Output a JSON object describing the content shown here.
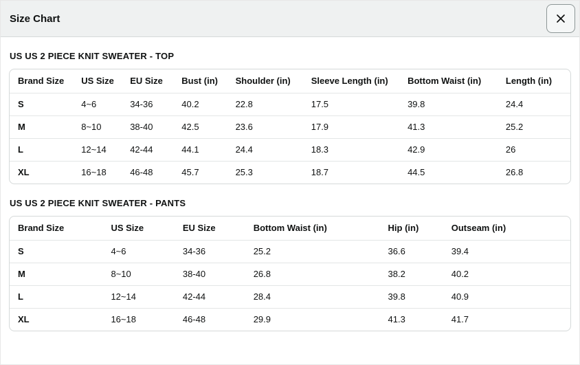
{
  "modal": {
    "title": "Size Chart"
  },
  "colors": {
    "header_background": "#eff1f1",
    "header_border": "#d5d9d9",
    "table_border": "#d5d9d9",
    "row_divider": "#e3e6e6",
    "text": "#0f1111",
    "close_button_border": "#8d9696"
  },
  "sections": [
    {
      "title": "US US 2 PIECE KNIT SWEATER - TOP",
      "columns": [
        "Brand Size",
        "US Size",
        "EU Size",
        "Bust (in)",
        "Shoulder (in)",
        "Sleeve Length (in)",
        "Bottom Waist (in)",
        "Length (in)"
      ],
      "rows": [
        [
          "S",
          "4~6",
          "34-36",
          "40.2",
          "22.8",
          "17.5",
          "39.8",
          "24.4"
        ],
        [
          "M",
          "8~10",
          "38-40",
          "42.5",
          "23.6",
          "17.9",
          "41.3",
          "25.2"
        ],
        [
          "L",
          "12~14",
          "42-44",
          "44.1",
          "24.4",
          "18.3",
          "42.9",
          "26"
        ],
        [
          "XL",
          "16~18",
          "46-48",
          "45.7",
          "25.3",
          "18.7",
          "44.5",
          "26.8"
        ]
      ]
    },
    {
      "title": "US US 2 PIECE KNIT SWEATER - PANTS",
      "columns": [
        "Brand Size",
        "US Size",
        "EU Size",
        "Bottom Waist (in)",
        "Hip (in)",
        "Outseam (in)"
      ],
      "rows": [
        [
          "S",
          "4~6",
          "34-36",
          "25.2",
          "36.6",
          "39.4"
        ],
        [
          "M",
          "8~10",
          "38-40",
          "26.8",
          "38.2",
          "40.2"
        ],
        [
          "L",
          "12~14",
          "42-44",
          "28.4",
          "39.8",
          "40.9"
        ],
        [
          "XL",
          "16~18",
          "46-48",
          "29.9",
          "41.3",
          "41.7"
        ]
      ]
    }
  ]
}
